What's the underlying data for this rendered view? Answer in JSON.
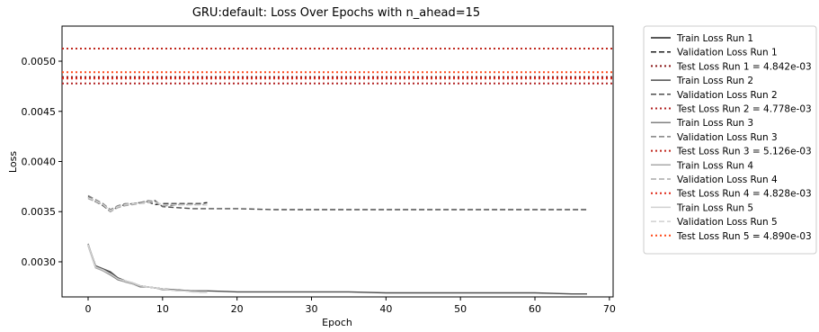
{
  "chart_data": {
    "type": "line",
    "title": "GRU:default: Loss Over Epochs with n_ahead=15",
    "xlabel": "Epoch",
    "ylabel": "Loss",
    "xlim": [
      -3.5,
      70.5
    ],
    "ylim": [
      0.00265,
      0.00535
    ],
    "xticks": [
      0,
      10,
      20,
      30,
      40,
      50,
      60,
      70
    ],
    "xtick_labels": [
      "0",
      "10",
      "20",
      "30",
      "40",
      "50",
      "60",
      "70"
    ],
    "yticks": [
      0.003,
      0.0035,
      0.004,
      0.0045,
      0.005
    ],
    "ytick_labels": [
      "0.0030",
      "0.0035",
      "0.0040",
      "0.0045",
      "0.0050"
    ],
    "grid": false,
    "legend_placement": "outside-right",
    "series": [
      {
        "name": "Train Loss Run 1",
        "style": "solid",
        "color": "#1f1f1f",
        "x": [
          0,
          1,
          2,
          3,
          4,
          5,
          6,
          7,
          8,
          9,
          10,
          11,
          12,
          13,
          14,
          15,
          16
        ],
        "values": [
          0.00317,
          0.00295,
          0.00292,
          0.00289,
          0.00283,
          0.0028,
          0.00278,
          0.00276,
          0.00275,
          0.00274,
          0.00273,
          0.00272,
          0.00272,
          0.00271,
          0.00271,
          0.0027,
          0.0027
        ]
      },
      {
        "name": "Validation Loss Run 1",
        "style": "dashed",
        "color": "#1f1f1f",
        "x": [
          0,
          1,
          2,
          3,
          4,
          5,
          6,
          7,
          8,
          9,
          10,
          11,
          12,
          13,
          14,
          15,
          16
        ],
        "values": [
          0.00364,
          0.00361,
          0.00357,
          0.00351,
          0.00355,
          0.00357,
          0.00358,
          0.00359,
          0.0036,
          0.00357,
          0.00358,
          0.00358,
          0.00358,
          0.00358,
          0.00358,
          0.00358,
          0.00359
        ]
      },
      {
        "name": "Test Loss Run 1 = 4.842e-03",
        "style": "dotted",
        "color": "#8b1a1a",
        "hline": 0.004842
      },
      {
        "name": "Train Loss Run 2",
        "style": "solid",
        "color": "#4d4d4d",
        "x": [
          0,
          1,
          2,
          3,
          4,
          5,
          6,
          7,
          8,
          9,
          10,
          12,
          14,
          16,
          20,
          25,
          30,
          35,
          40,
          45,
          50,
          55,
          60,
          65,
          67
        ],
        "values": [
          0.00317,
          0.00296,
          0.00293,
          0.0029,
          0.00284,
          0.00281,
          0.00279,
          0.00276,
          0.00275,
          0.00274,
          0.00273,
          0.00272,
          0.00271,
          0.00271,
          0.0027,
          0.0027,
          0.0027,
          0.0027,
          0.00269,
          0.00269,
          0.00269,
          0.00269,
          0.00269,
          0.00268,
          0.00268
        ]
      },
      {
        "name": "Validation Loss Run 2",
        "style": "dashed",
        "color": "#4d4d4d",
        "x": [
          0,
          1,
          2,
          3,
          4,
          5,
          6,
          7,
          8,
          9,
          10,
          12,
          14,
          16,
          20,
          25,
          30,
          35,
          40,
          45,
          50,
          55,
          60,
          65,
          67
        ],
        "values": [
          0.00365,
          0.0036,
          0.00356,
          0.0035,
          0.00355,
          0.00357,
          0.00358,
          0.00359,
          0.0036,
          0.00361,
          0.00355,
          0.00354,
          0.00353,
          0.00353,
          0.00353,
          0.00352,
          0.00352,
          0.00352,
          0.00352,
          0.00352,
          0.00352,
          0.00352,
          0.00352,
          0.00352,
          0.00352
        ]
      },
      {
        "name": "Test Loss Run 2 = 4.778e-03",
        "style": "dotted",
        "color": "#b22222",
        "hline": 0.004778
      },
      {
        "name": "Train Loss Run 3",
        "style": "solid",
        "color": "#808080",
        "x": [
          0,
          1,
          2,
          3,
          4,
          5,
          6,
          7,
          8,
          9,
          10,
          11,
          12,
          13,
          14,
          15,
          16
        ],
        "values": [
          0.00318,
          0.00295,
          0.00291,
          0.00287,
          0.00282,
          0.0028,
          0.00278,
          0.00275,
          0.00275,
          0.00274,
          0.00273,
          0.00272,
          0.00272,
          0.00271,
          0.00271,
          0.0027,
          0.0027
        ]
      },
      {
        "name": "Validation Loss Run 3",
        "style": "dashed",
        "color": "#808080",
        "x": [
          0,
          1,
          2,
          3,
          4,
          5,
          6,
          7,
          8,
          9,
          10,
          11,
          12,
          13,
          14,
          15,
          16
        ],
        "values": [
          0.00366,
          0.00362,
          0.00358,
          0.00352,
          0.00356,
          0.00358,
          0.00358,
          0.00359,
          0.00361,
          0.0036,
          0.00356,
          0.00356,
          0.00357,
          0.00357,
          0.00357,
          0.00357,
          0.00357
        ]
      },
      {
        "name": "Test Loss Run 3 = 5.126e-03",
        "style": "dotted",
        "color": "#c0281e",
        "hline": 0.005126
      },
      {
        "name": "Train Loss Run 4",
        "style": "solid",
        "color": "#a8a8a8",
        "x": [
          0,
          1,
          2,
          3,
          4,
          5,
          6,
          7,
          8,
          9,
          10,
          11,
          12,
          13,
          14,
          15,
          16
        ],
        "values": [
          0.00316,
          0.00294,
          0.00291,
          0.00288,
          0.00283,
          0.0028,
          0.00278,
          0.00276,
          0.00275,
          0.00274,
          0.00272,
          0.00272,
          0.00271,
          0.00271,
          0.0027,
          0.0027,
          0.0027
        ]
      },
      {
        "name": "Validation Loss Run 4",
        "style": "dashed",
        "color": "#a8a8a8",
        "x": [
          0,
          1,
          2,
          3,
          4,
          5,
          6,
          7,
          8,
          9,
          10,
          11,
          12,
          13,
          14,
          15,
          16
        ],
        "values": [
          0.00363,
          0.0036,
          0.00357,
          0.0035,
          0.00354,
          0.00356,
          0.00357,
          0.00358,
          0.00359,
          0.0036,
          0.00356,
          0.00357,
          0.00357,
          0.00357,
          0.00357,
          0.00357,
          0.00357
        ]
      },
      {
        "name": "Test Loss Run 4 = 4.828e-03",
        "style": "dotted",
        "color": "#e02818",
        "hline": 0.004828
      },
      {
        "name": "Train Loss Run 5",
        "style": "solid",
        "color": "#d0d0d0",
        "x": [
          0,
          1,
          2,
          3,
          4,
          5,
          6,
          7,
          8,
          9,
          10,
          11,
          12,
          13,
          14,
          15,
          16
        ],
        "values": [
          0.00317,
          0.00295,
          0.00292,
          0.00288,
          0.00283,
          0.00281,
          0.00279,
          0.00276,
          0.00275,
          0.00274,
          0.00273,
          0.00272,
          0.00271,
          0.00271,
          0.0027,
          0.0027,
          0.0027
        ]
      },
      {
        "name": "Validation Loss Run 5",
        "style": "dashed",
        "color": "#d0d0d0",
        "x": [
          0,
          1,
          2,
          3,
          4,
          5,
          6,
          7,
          8,
          9,
          10,
          11,
          12,
          13,
          14,
          15,
          16
        ],
        "values": [
          0.00364,
          0.00361,
          0.00357,
          0.00351,
          0.00355,
          0.00357,
          0.00358,
          0.00358,
          0.0036,
          0.00359,
          0.00357,
          0.00357,
          0.00357,
          0.00357,
          0.00357,
          0.00357,
          0.00357
        ]
      },
      {
        "name": "Test Loss Run 5 = 4.890e-03",
        "style": "dotted",
        "color": "#ff4a1a",
        "hline": 0.00489
      }
    ]
  }
}
